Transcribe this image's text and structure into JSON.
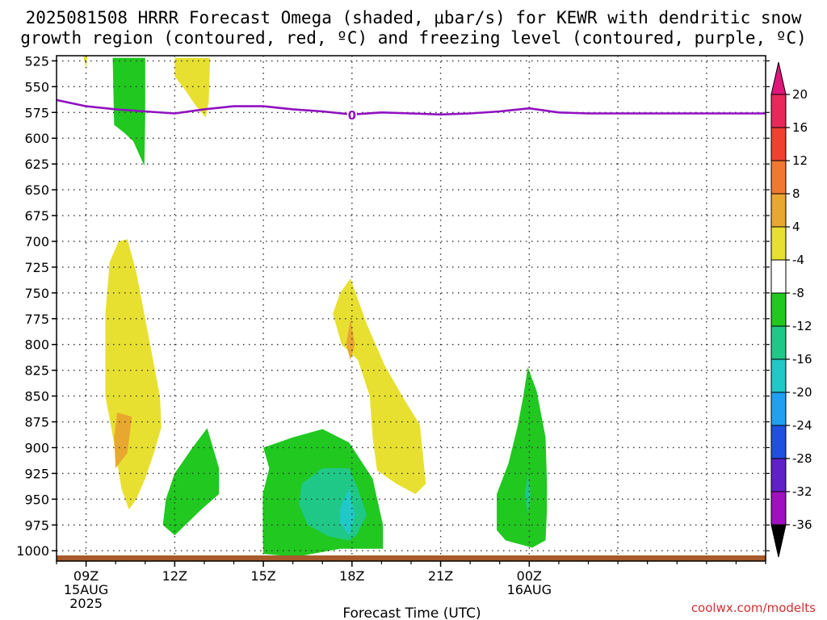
{
  "header": {
    "title_line1": "2025081508 HRRR Forecast Omega (shaded, μbar/s) for KEWR with dendritic snow",
    "title_line2": "growth region (contoured, red, ºC) and freezing level (contoured, purple, ºC)"
  },
  "footer": {
    "credit": "coolwx.com/modelts"
  },
  "chart_data": {
    "type": "area",
    "title": "2025081508 HRRR Forecast Omega (shaded, μbar/s) for KEWR with dendritic snow growth region (contoured, red, ºC) and freezing level (contoured, purple, ºC)",
    "xlabel": "Forecast Time (UTC)",
    "ylabel": "",
    "xlim": [
      8,
      32
    ],
    "ylim": [
      1010,
      520
    ],
    "x_ticks": [
      {
        "h": 9,
        "label": "09Z",
        "sub1": "15AUG",
        "sub2": "2025"
      },
      {
        "h": 12,
        "label": "12Z",
        "sub1": "",
        "sub2": ""
      },
      {
        "h": 15,
        "label": "15Z",
        "sub1": "",
        "sub2": ""
      },
      {
        "h": 18,
        "label": "18Z",
        "sub1": "",
        "sub2": ""
      },
      {
        "h": 21,
        "label": "21Z",
        "sub1": "",
        "sub2": ""
      },
      {
        "h": 24,
        "label": "00Z",
        "sub1": "16AUG",
        "sub2": ""
      }
    ],
    "y_ticks": [
      "525",
      "550",
      "575",
      "600",
      "625",
      "650",
      "675",
      "700",
      "725",
      "750",
      "775",
      "800",
      "825",
      "850",
      "875",
      "900",
      "925",
      "950",
      "975",
      "1000"
    ],
    "grid": true,
    "colorbar": {
      "levels": [
        "20",
        "16",
        "12",
        "8",
        "4",
        "-4",
        "-8",
        "-12",
        "-16",
        "-20",
        "-24",
        "-28",
        "-32",
        "-36"
      ],
      "colors": [
        "#e8285a",
        "#f04030",
        "#f07830",
        "#e8a830",
        "#e8e030",
        "#ffffff",
        "#20c820",
        "#20c888",
        "#20c8c8",
        "#20a0f0",
        "#2050e0",
        "#6020c8",
        "#a010c0",
        "#a8a8a8"
      ],
      "top_arrow_color": "#e0157a",
      "bottom_arrow_color": "#000000"
    },
    "freezing_level": {
      "label": "0",
      "color": "#9010c0",
      "points": [
        [
          8,
          563
        ],
        [
          9,
          569
        ],
        [
          10,
          572
        ],
        [
          11,
          574
        ],
        [
          12,
          576
        ],
        [
          13,
          572
        ],
        [
          14,
          569
        ],
        [
          15,
          569
        ],
        [
          16,
          572
        ],
        [
          17,
          574
        ],
        [
          18,
          577
        ],
        [
          19,
          575
        ],
        [
          20,
          576
        ],
        [
          21,
          577
        ],
        [
          22,
          576
        ],
        [
          23,
          574
        ],
        [
          24,
          571
        ],
        [
          25,
          575
        ],
        [
          26,
          576
        ],
        [
          32,
          576
        ]
      ]
    },
    "ground_color": "#a85a2a",
    "omega_regions": [
      {
        "value": -4,
        "color": "#20c820",
        "points": [
          [
            9.9,
            522
          ],
          [
            11,
            522
          ],
          [
            11,
            580
          ],
          [
            10.97,
            627
          ],
          [
            10.6,
            603
          ],
          [
            10.3,
            595
          ],
          [
            9.95,
            587
          ]
        ]
      },
      {
        "value": 4,
        "color": "#e8e030",
        "points": [
          [
            12,
            522
          ],
          [
            13.2,
            522
          ],
          [
            13.15,
            565
          ],
          [
            13.05,
            580
          ],
          [
            12.7,
            568
          ],
          [
            12.35,
            553
          ],
          [
            12,
            540
          ]
        ]
      },
      {
        "value": 4,
        "color": "#e8e030",
        "points": [
          [
            8.9,
            520
          ],
          [
            9.05,
            520
          ],
          [
            9,
            532
          ]
        ]
      },
      {
        "value": 4,
        "color": "#e8e030",
        "points": [
          [
            10.4,
            698
          ],
          [
            10.7,
            730
          ],
          [
            11.1,
            790
          ],
          [
            11.5,
            850
          ],
          [
            11.55,
            880
          ],
          [
            11.3,
            905
          ],
          [
            11,
            930
          ],
          [
            10.7,
            950
          ],
          [
            10.45,
            960
          ],
          [
            10.2,
            940
          ],
          [
            9.85,
            880
          ],
          [
            9.65,
            850
          ],
          [
            9.65,
            770
          ],
          [
            9.8,
            720
          ],
          [
            10.1,
            700
          ]
        ]
      },
      {
        "value": 8,
        "color": "#e8a830",
        "points": [
          [
            10.05,
            866
          ],
          [
            10.55,
            870
          ],
          [
            10.4,
            905
          ],
          [
            10,
            920
          ],
          [
            9.95,
            890
          ]
        ]
      },
      {
        "value": 4,
        "color": "#e8e030",
        "points": [
          [
            17.95,
            736
          ],
          [
            18.5,
            780
          ],
          [
            19.1,
            820
          ],
          [
            19.7,
            850
          ],
          [
            20.3,
            878
          ],
          [
            20.5,
            935
          ],
          [
            20.15,
            945
          ],
          [
            19.5,
            935
          ],
          [
            18.85,
            922
          ],
          [
            18.7,
            890
          ],
          [
            18.6,
            850
          ],
          [
            18.2,
            815
          ],
          [
            17.65,
            800
          ],
          [
            17.35,
            770
          ],
          [
            17.6,
            750
          ]
        ]
      },
      {
        "value": 8,
        "color": "#e8a830",
        "points": [
          [
            17.95,
            775
          ],
          [
            18.1,
            800
          ],
          [
            17.95,
            815
          ],
          [
            17.8,
            800
          ]
        ]
      },
      {
        "value": -4,
        "color": "#20c820",
        "points": [
          [
            13.1,
            881
          ],
          [
            13.5,
            920
          ],
          [
            13.5,
            945
          ],
          [
            12.9,
            960
          ],
          [
            12,
            985
          ],
          [
            11.6,
            975
          ],
          [
            11.7,
            950
          ],
          [
            12,
            925
          ],
          [
            12.6,
            900
          ]
        ]
      },
      {
        "value": -4,
        "color": "#20c820",
        "points": [
          [
            15,
            900
          ],
          [
            16,
            890
          ],
          [
            17,
            882
          ],
          [
            17.9,
            895
          ],
          [
            18.7,
            930
          ],
          [
            19.05,
            975
          ],
          [
            19.05,
            998
          ],
          [
            17.6,
            998
          ],
          [
            16.1,
            1006
          ],
          [
            15,
            1003
          ],
          [
            14.98,
            985
          ],
          [
            14.98,
            945
          ],
          [
            15.2,
            920
          ]
        ]
      },
      {
        "value": -8,
        "color": "#20c888",
        "points": [
          [
            16.3,
            935
          ],
          [
            17,
            920
          ],
          [
            17.9,
            920
          ],
          [
            18.2,
            940
          ],
          [
            18.5,
            965
          ],
          [
            18.15,
            985
          ],
          [
            17.9,
            990
          ],
          [
            17.2,
            986
          ],
          [
            16.5,
            975
          ],
          [
            16.2,
            955
          ]
        ]
      },
      {
        "value": -12,
        "color": "#20c8c8",
        "points": [
          [
            17.6,
            958
          ],
          [
            17.9,
            940
          ],
          [
            18.1,
            965
          ],
          [
            17.9,
            985
          ],
          [
            17.6,
            973
          ]
        ]
      },
      {
        "value": -4,
        "color": "#20c820",
        "points": [
          [
            23.95,
            822
          ],
          [
            24.25,
            845
          ],
          [
            24.55,
            890
          ],
          [
            24.6,
            935
          ],
          [
            24.6,
            960
          ],
          [
            24.55,
            990
          ],
          [
            24.1,
            997
          ],
          [
            23.2,
            990
          ],
          [
            22.9,
            980
          ],
          [
            22.9,
            945
          ],
          [
            23.3,
            915
          ],
          [
            23.6,
            880
          ],
          [
            23.8,
            850
          ]
        ]
      },
      {
        "value": -8,
        "color": "#20c888",
        "points": [
          [
            23.95,
            926
          ],
          [
            24.05,
            945
          ],
          [
            23.95,
            965
          ],
          [
            23.85,
            945
          ]
        ]
      }
    ]
  }
}
